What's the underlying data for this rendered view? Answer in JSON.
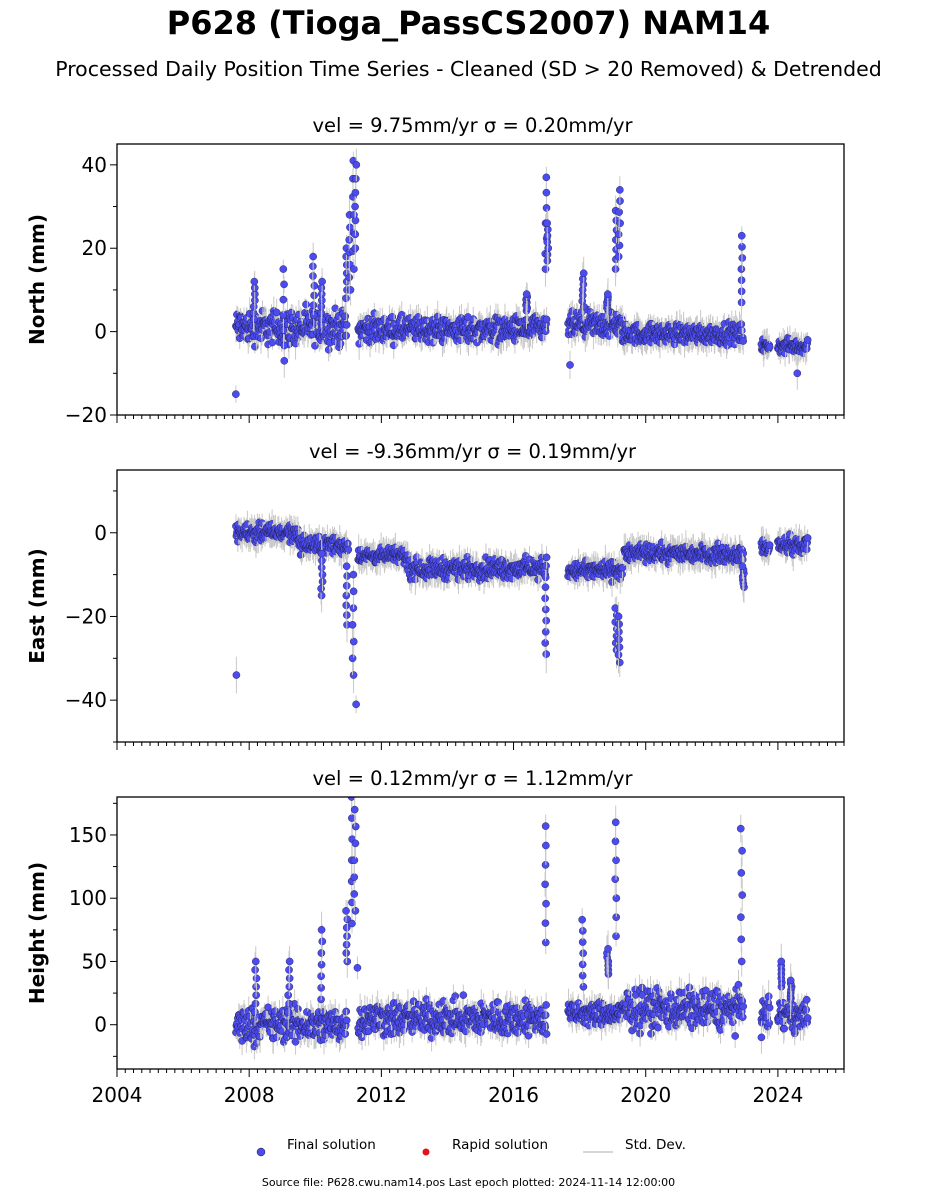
{
  "title": "P628 (Tioga_PassCS2007) NAM14",
  "subtitle": "Processed Daily Position Time Series - Cleaned (SD > 20 Removed) & Detrended",
  "legend": [
    {
      "label": "Final solution",
      "color": "#4b4bf0"
    },
    {
      "label": "Rapid solution",
      "color": "#e0141e"
    },
    {
      "label": "Std. Dev.",
      "color": "#c8c8c8"
    }
  ],
  "footer": "Source file: P628.cwu.nam14.pos  Last epoch plotted: 2024-11-14 12:00:00",
  "chart_data": [
    {
      "type": "scatter",
      "title_vel": "vel = 9.75mm/yr",
      "title_sigma": "σ = 0.20mm/yr",
      "ylabel": "North (mm)",
      "xlim": [
        2004,
        2026
      ],
      "ylim": [
        -20,
        45
      ],
      "xticks": [
        2004,
        2008,
        2012,
        2016,
        2020,
        2024
      ],
      "yticks": [
        -20,
        0,
        20,
        40
      ],
      "tick_labels": [
        "−20",
        "0",
        "20",
        "40"
      ],
      "segments": [
        {
          "x": [
            2007.6,
            2010.95
          ],
          "y": [
            -5,
            7
          ]
        },
        {
          "x": [
            2011.3,
            2017.0
          ],
          "y": [
            -4,
            5
          ]
        },
        {
          "x": [
            2017.65,
            2019.3
          ],
          "y": [
            -3,
            6
          ]
        },
        {
          "x": [
            2019.3,
            2022.95
          ],
          "y": [
            -4,
            3
          ]
        },
        {
          "x": [
            2023.5,
            2023.75
          ],
          "y": [
            -6,
            -1
          ]
        },
        {
          "x": [
            2024.0,
            2024.9
          ],
          "y": [
            -6,
            -1
          ]
        }
      ],
      "spikes": [
        {
          "x": 2007.62,
          "y": [
            -15,
            -15
          ]
        },
        {
          "x": 2008.15,
          "y": [
            3,
            12
          ]
        },
        {
          "x": 2009.05,
          "y": [
            -7,
            15
          ]
        },
        {
          "x": 2009.95,
          "y": [
            4,
            18
          ]
        },
        {
          "x": 2010.2,
          "y": [
            3,
            12
          ]
        },
        {
          "x": 2010.95,
          "y": [
            8,
            20
          ]
        },
        {
          "x": 2011.05,
          "y": [
            10,
            28
          ]
        },
        {
          "x": 2011.15,
          "y": [
            15,
            41
          ]
        },
        {
          "x": 2011.22,
          "y": [
            20,
            40
          ]
        },
        {
          "x": 2016.4,
          "y": [
            5,
            9
          ]
        },
        {
          "x": 2016.98,
          "y": [
            15,
            37
          ]
        },
        {
          "x": 2017.03,
          "y": [
            17,
            26
          ]
        },
        {
          "x": 2017.7,
          "y": [
            -8,
            -8
          ]
        },
        {
          "x": 2018.1,
          "y": [
            6,
            14
          ]
        },
        {
          "x": 2018.85,
          "y": [
            5,
            9
          ]
        },
        {
          "x": 2019.1,
          "y": [
            15,
            29
          ]
        },
        {
          "x": 2019.2,
          "y": [
            18,
            34
          ]
        },
        {
          "x": 2022.9,
          "y": [
            7,
            23
          ]
        },
        {
          "x": 2024.6,
          "y": [
            -10,
            -10
          ]
        }
      ]
    },
    {
      "type": "scatter",
      "title_vel": "vel = -9.36mm/yr",
      "title_sigma": "σ = 0.19mm/yr",
      "ylabel": "East (mm)",
      "xlim": [
        2004,
        2026
      ],
      "ylim": [
        -50,
        15
      ],
      "xticks": [
        2004,
        2008,
        2012,
        2016,
        2020,
        2024
      ],
      "yticks": [
        -40,
        -20,
        0
      ],
      "tick_labels": [
        "−40",
        "−20",
        "0"
      ],
      "segments": [
        {
          "x": [
            2007.6,
            2009.5
          ],
          "y": [
            -3,
            3
          ]
        },
        {
          "x": [
            2009.5,
            2011.0
          ],
          "y": [
            -6,
            0
          ]
        },
        {
          "x": [
            2011.3,
            2012.8
          ],
          "y": [
            -8,
            -3
          ]
        },
        {
          "x": [
            2012.8,
            2017.0
          ],
          "y": [
            -12,
            -5
          ]
        },
        {
          "x": [
            2017.65,
            2019.3
          ],
          "y": [
            -12,
            -6
          ]
        },
        {
          "x": [
            2019.35,
            2022.95
          ],
          "y": [
            -8,
            -2
          ]
        },
        {
          "x": [
            2023.5,
            2023.75
          ],
          "y": [
            -6,
            -1
          ]
        },
        {
          "x": [
            2024.0,
            2024.9
          ],
          "y": [
            -6,
            0
          ]
        }
      ],
      "spikes": [
        {
          "x": 2007.62,
          "y": [
            -34,
            -34
          ]
        },
        {
          "x": 2010.2,
          "y": [
            -15,
            -5
          ]
        },
        {
          "x": 2010.95,
          "y": [
            -22,
            -8
          ]
        },
        {
          "x": 2011.15,
          "y": [
            -34,
            -10
          ]
        },
        {
          "x": 2011.22,
          "y": [
            -41,
            -41
          ]
        },
        {
          "x": 2016.98,
          "y": [
            -29,
            -13
          ]
        },
        {
          "x": 2019.1,
          "y": [
            -28,
            -18
          ]
        },
        {
          "x": 2019.2,
          "y": [
            -31,
            -20
          ]
        },
        {
          "x": 2022.95,
          "y": [
            -13,
            -8
          ]
        }
      ]
    },
    {
      "type": "scatter",
      "title_vel": "vel = 0.12mm/yr",
      "title_sigma": "σ = 1.12mm/yr",
      "ylabel": "Height (mm)",
      "xlim": [
        2004,
        2026
      ],
      "ylim": [
        -35,
        180
      ],
      "xticks": [
        2004,
        2008,
        2012,
        2016,
        2020,
        2024
      ],
      "xtick_labels": [
        "2004",
        "2008",
        "2012",
        "2016",
        "2020",
        "2024"
      ],
      "yticks": [
        0,
        50,
        100,
        150
      ],
      "tick_labels": [
        "0",
        "50",
        "100",
        "150"
      ],
      "segments": [
        {
          "x": [
            2007.6,
            2010.95
          ],
          "y": [
            -20,
            20
          ]
        },
        {
          "x": [
            2011.3,
            2017.0
          ],
          "y": [
            -15,
            25
          ]
        },
        {
          "x": [
            2017.65,
            2019.3
          ],
          "y": [
            -5,
            22
          ]
        },
        {
          "x": [
            2019.3,
            2022.95
          ],
          "y": [
            -10,
            35
          ]
        },
        {
          "x": [
            2023.5,
            2023.75
          ],
          "y": [
            -5,
            25
          ]
        },
        {
          "x": [
            2024.0,
            2024.9
          ],
          "y": [
            -10,
            25
          ]
        }
      ],
      "spikes": [
        {
          "x": 2008.2,
          "y": [
            10,
            50
          ]
        },
        {
          "x": 2009.2,
          "y": [
            10,
            50
          ]
        },
        {
          "x": 2010.2,
          "y": [
            20,
            75
          ]
        },
        {
          "x": 2010.95,
          "y": [
            50,
            90
          ]
        },
        {
          "x": 2011.1,
          "y": [
            80,
            180
          ]
        },
        {
          "x": 2011.2,
          "y": [
            90,
            170
          ]
        },
        {
          "x": 2011.3,
          "y": [
            45,
            45
          ]
        },
        {
          "x": 2016.98,
          "y": [
            65,
            157
          ]
        },
        {
          "x": 2018.1,
          "y": [
            30,
            83
          ]
        },
        {
          "x": 2018.85,
          "y": [
            40,
            60
          ]
        },
        {
          "x": 2019.1,
          "y": [
            70,
            160
          ]
        },
        {
          "x": 2022.9,
          "y": [
            50,
            155
          ]
        },
        {
          "x": 2023.5,
          "y": [
            -10,
            -10
          ]
        },
        {
          "x": 2024.1,
          "y": [
            30,
            50
          ]
        },
        {
          "x": 2024.4,
          "y": [
            20,
            35
          ]
        }
      ]
    }
  ]
}
